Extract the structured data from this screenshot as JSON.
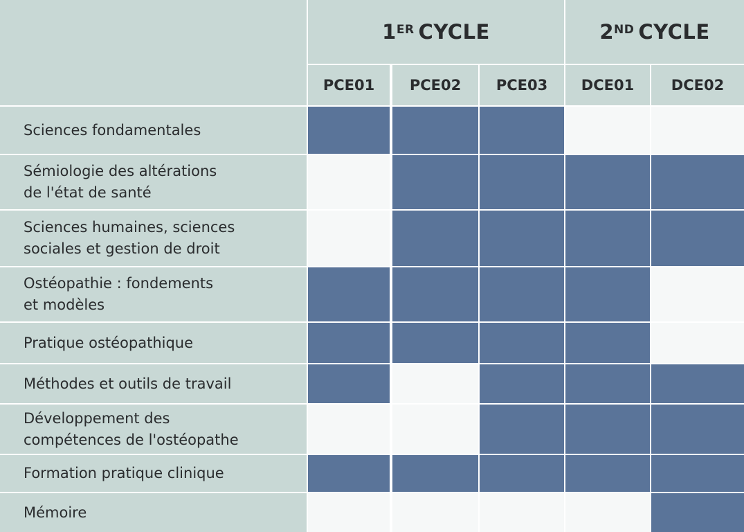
{
  "header": {
    "cycles": [
      {
        "num": "1",
        "sup": "ER",
        "word": "CYCLE"
      },
      {
        "num": "2",
        "sup": "ND",
        "word": "CYCLE"
      }
    ],
    "years": [
      "PCE01",
      "PCE02",
      "PCE03",
      "DCE01",
      "DCE02"
    ]
  },
  "colors": {
    "filled": "#5a7499",
    "empty": "#f6f8f8",
    "label_bg": "#c8d8d5"
  },
  "rows": [
    {
      "label": "Sciences fondamentales",
      "cells": [
        1,
        1,
        1,
        0,
        0
      ]
    },
    {
      "label": "Sémiologie des altérations\nde l'état de santé",
      "cells": [
        0,
        1,
        1,
        1,
        1
      ]
    },
    {
      "label": "Sciences humaines, sciences\nsociales et gestion de droit",
      "cells": [
        0,
        1,
        1,
        1,
        1
      ]
    },
    {
      "label": "Ostéopathie : fondements\net modèles",
      "cells": [
        1,
        1,
        1,
        1,
        0
      ]
    },
    {
      "label": "Pratique ostéopathique",
      "cells": [
        1,
        1,
        1,
        1,
        0
      ]
    },
    {
      "label": "Méthodes et outils de travail",
      "cells": [
        1,
        0,
        1,
        1,
        1
      ]
    },
    {
      "label": "Développement des\ncompétences de l'ostéopathe",
      "cells": [
        0,
        0,
        1,
        1,
        1
      ]
    },
    {
      "label": "Formation pratique clinique",
      "cells": [
        1,
        1,
        1,
        1,
        1
      ]
    },
    {
      "label": "Mémoire",
      "cells": [
        0,
        0,
        0,
        0,
        1
      ]
    }
  ]
}
